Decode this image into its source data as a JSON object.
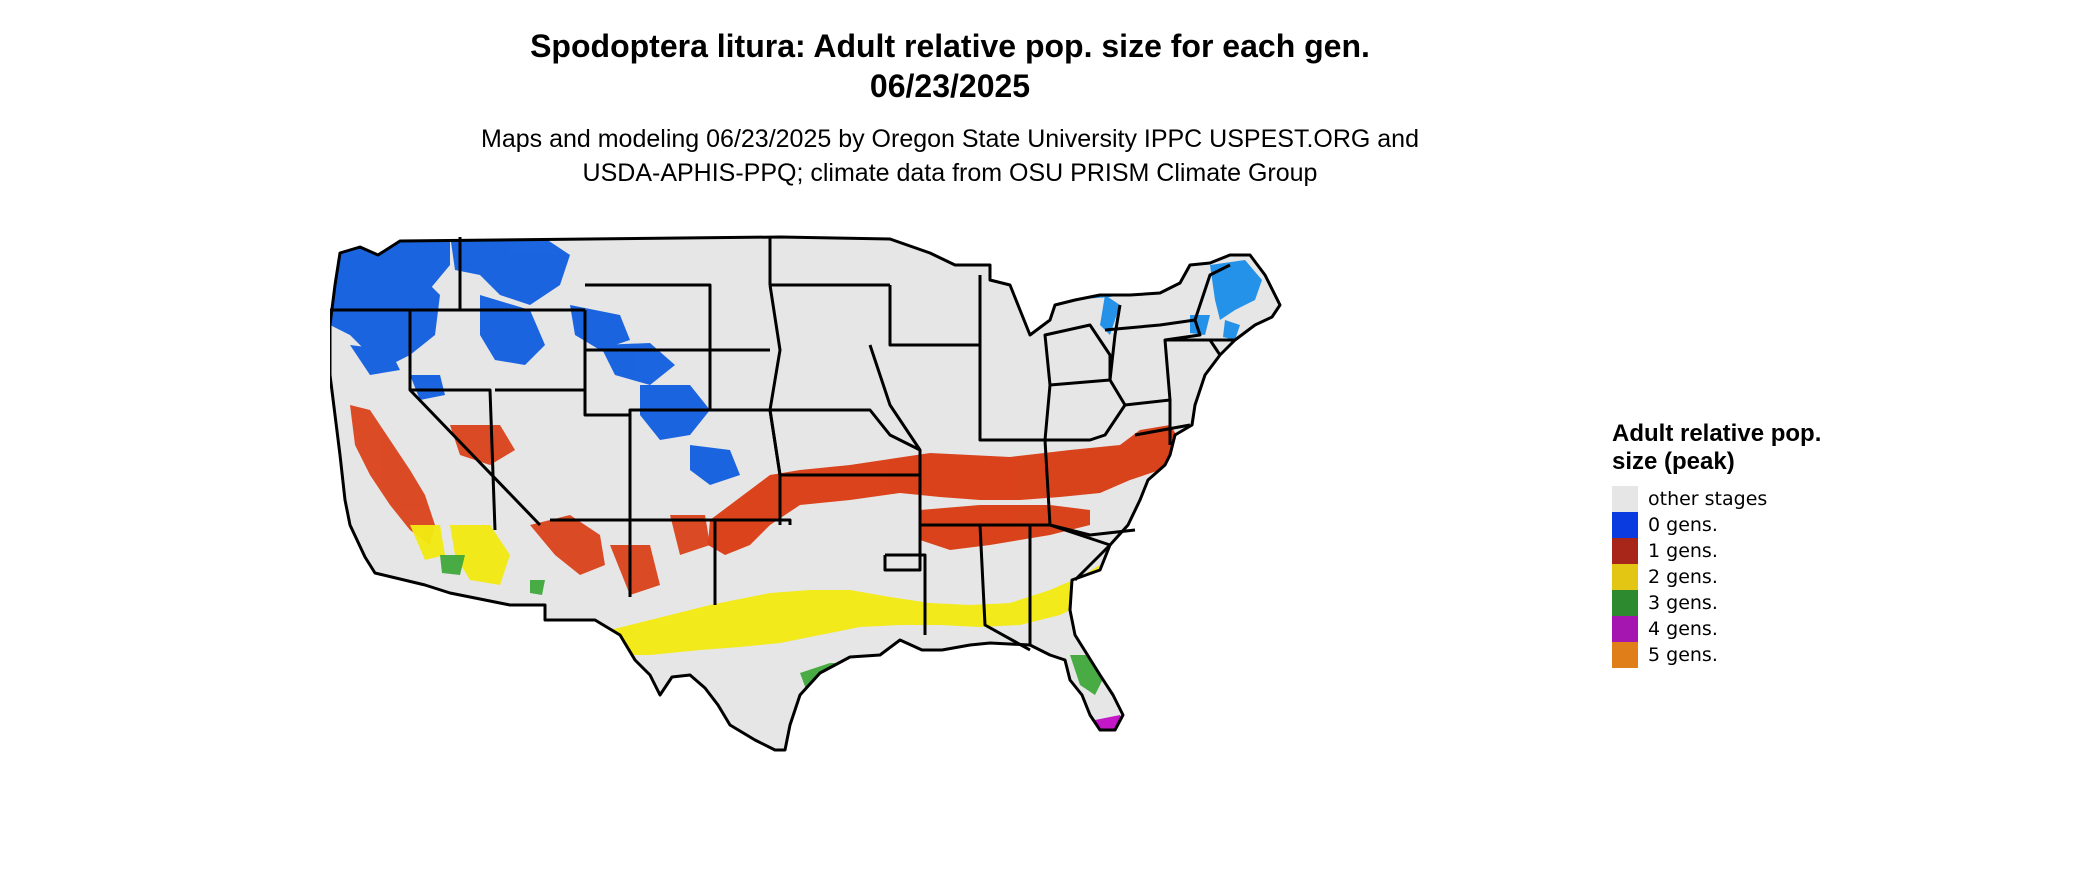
{
  "map": {
    "title_line1": "Spodoptera litura: Adult relative pop. size for each gen.",
    "title_line2": "06/23/2025",
    "subtitle_line1": "Maps and modeling 06/23/2025 by Oregon State University IPPC USPEST.ORG and",
    "subtitle_line2": "USDA-APHIS-PPQ; climate data from OSU PRISM Climate Group",
    "region": "Contiguous United States",
    "background_color": "#e6e6e6",
    "border_color": "#000000"
  },
  "legend": {
    "title": "Adult relative pop. size (peak)",
    "items": [
      {
        "label": "other stages",
        "color": "#e6e6e6"
      },
      {
        "label": "0 gens.",
        "color": "#0a3be0"
      },
      {
        "label": "1 gens.",
        "color": "#a8251a"
      },
      {
        "label": "2 gens.",
        "color": "#e3c513"
      },
      {
        "label": "3 gens.",
        "color": "#2e8a2e"
      },
      {
        "label": "4 gens.",
        "color": "#a516b0"
      },
      {
        "label": "5 gens.",
        "color": "#e07e1a"
      }
    ]
  },
  "zones": [
    {
      "name": "northwest-mountains",
      "category": "0 gens."
    },
    {
      "name": "great-lakes",
      "category": "0 gens."
    },
    {
      "name": "new-england",
      "category": "0 gens."
    },
    {
      "name": "central-belt",
      "category": "1 gens."
    },
    {
      "name": "california-southwest",
      "category": "1 gens."
    },
    {
      "name": "southern-belt",
      "category": "2 gens."
    },
    {
      "name": "gulf-coast",
      "category": "3 gens."
    },
    {
      "name": "south-florida",
      "category": "4 gens."
    }
  ]
}
